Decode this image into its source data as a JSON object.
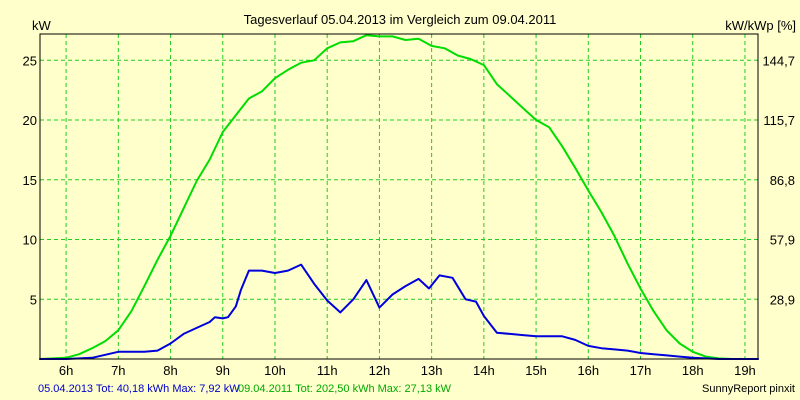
{
  "chart_data": {
    "type": "line",
    "title": "Tagesverlauf 05.04.2013 im Vergleich zum 09.04.2011",
    "ylabel_left": "kW",
    "ylabel_right": "kW/kWp [%]",
    "x_ticks": [
      "6h",
      "7h",
      "8h",
      "9h",
      "10h",
      "11h",
      "12h",
      "13h",
      "14h",
      "15h",
      "16h",
      "17h",
      "18h",
      "19h"
    ],
    "x_tick_values": [
      6,
      7,
      8,
      9,
      10,
      11,
      12,
      13,
      14,
      15,
      16,
      17,
      18,
      19
    ],
    "xlim": [
      5.5,
      19.25
    ],
    "ylim": [
      0,
      27.2
    ],
    "y_ticks": [
      5,
      10,
      15,
      20,
      25
    ],
    "y_ticks_right": [
      "28,9",
      "57,9",
      "86,8",
      "115,7",
      "144,7"
    ],
    "grid": true,
    "series": [
      {
        "color": "#0000dd",
        "x": [
          5.5,
          6.0,
          6.5,
          7.0,
          7.25,
          7.5,
          7.75,
          8.0,
          8.25,
          8.5,
          8.75,
          8.85,
          9.0,
          9.1,
          9.25,
          9.35,
          9.5,
          9.75,
          10.0,
          10.25,
          10.5,
          10.75,
          11.0,
          11.25,
          11.5,
          11.75,
          12.0,
          12.25,
          12.5,
          12.75,
          12.95,
          13.15,
          13.4,
          13.65,
          13.85,
          14.0,
          14.25,
          14.5,
          14.75,
          15.0,
          15.5,
          15.75,
          16.0,
          16.25,
          16.5,
          16.75,
          17.0,
          17.25,
          17.5,
          17.75,
          18.0,
          18.25,
          18.5,
          19.0,
          19.25
        ],
        "values": [
          0,
          0,
          0.1,
          0.6,
          0.6,
          0.6,
          0.7,
          1.3,
          2.1,
          2.6,
          3.1,
          3.5,
          3.4,
          3.5,
          4.4,
          5.8,
          7.4,
          7.4,
          7.2,
          7.4,
          7.9,
          6.3,
          4.9,
          3.9,
          5.0,
          6.6,
          4.3,
          5.4,
          6.1,
          6.7,
          5.9,
          7.0,
          6.8,
          5.0,
          4.8,
          3.6,
          2.2,
          2.1,
          2.0,
          1.9,
          1.9,
          1.6,
          1.1,
          0.9,
          0.8,
          0.7,
          0.5,
          0.4,
          0.3,
          0.2,
          0.1,
          0.05,
          0,
          0,
          0
        ]
      },
      {
        "color": "#00dd00",
        "x": [
          5.5,
          6.0,
          6.25,
          6.5,
          6.75,
          7.0,
          7.25,
          7.5,
          7.75,
          8.0,
          8.25,
          8.5,
          8.75,
          9.0,
          9.25,
          9.5,
          9.75,
          10.0,
          10.25,
          10.5,
          10.75,
          11.0,
          11.25,
          11.5,
          11.75,
          12.0,
          12.25,
          12.5,
          12.75,
          13.0,
          13.25,
          13.5,
          13.75,
          14.0,
          14.25,
          14.5,
          14.75,
          15.0,
          15.25,
          15.5,
          15.75,
          16.0,
          16.25,
          16.5,
          16.75,
          17.0,
          17.25,
          17.5,
          17.75,
          18.0,
          18.25,
          18.5,
          18.75,
          19.0,
          19.25
        ],
        "values": [
          0,
          0.1,
          0.4,
          0.9,
          1.5,
          2.4,
          4.0,
          6.1,
          8.3,
          10.3,
          12.6,
          14.9,
          16.7,
          19.0,
          20.4,
          21.8,
          22.4,
          23.5,
          24.2,
          24.8,
          25.0,
          26.0,
          26.5,
          26.6,
          27.1,
          27.0,
          27.0,
          26.7,
          26.8,
          26.2,
          26.0,
          25.4,
          25.1,
          24.6,
          23.0,
          22.0,
          21.0,
          20.0,
          19.4,
          17.8,
          16.0,
          14.1,
          12.3,
          10.3,
          8.0,
          5.9,
          4.0,
          2.4,
          1.3,
          0.6,
          0.2,
          0.05,
          0,
          0,
          0
        ]
      }
    ]
  },
  "footer": {
    "series1_text": "05.04.2013 Tot: 40,18 kWh Max: 7,92 kW",
    "series2_text": "09.04.2011 Tot: 202,50 kWh Max: 27,13 kW",
    "credit": "SunnyReport pinxit"
  }
}
